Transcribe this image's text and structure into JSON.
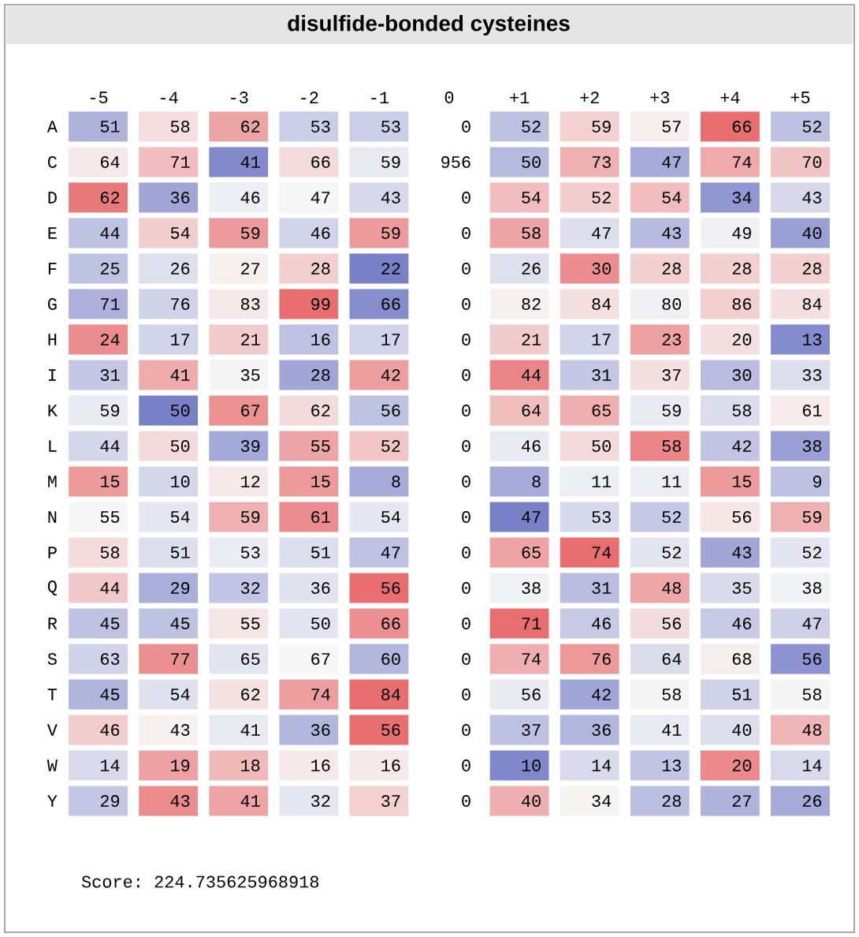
{
  "chart_data": {
    "type": "heatmap",
    "title": "disulfide-bonded cysteines",
    "categories": [
      "-5",
      "-4",
      "-3",
      "-2",
      "-1",
      "0",
      "+1",
      "+2",
      "+3",
      "+4",
      "+5"
    ],
    "y_categories": [
      "A",
      "C",
      "D",
      "E",
      "F",
      "G",
      "H",
      "I",
      "K",
      "L",
      "M",
      "N",
      "P",
      "Q",
      "R",
      "S",
      "T",
      "V",
      "W",
      "Y"
    ],
    "cells": [
      [
        51,
        58,
        62,
        53,
        53,
        0,
        52,
        59,
        57,
        66,
        52
      ],
      [
        64,
        71,
        41,
        66,
        59,
        956,
        50,
        73,
        47,
        74,
        70
      ],
      [
        62,
        36,
        46,
        47,
        43,
        0,
        54,
        52,
        54,
        34,
        43
      ],
      [
        44,
        54,
        59,
        46,
        59,
        0,
        58,
        47,
        43,
        49,
        40
      ],
      [
        25,
        26,
        27,
        28,
        22,
        0,
        26,
        30,
        28,
        28,
        28
      ],
      [
        71,
        76,
        83,
        99,
        66,
        0,
        82,
        84,
        80,
        86,
        84
      ],
      [
        24,
        17,
        21,
        16,
        17,
        0,
        21,
        17,
        23,
        20,
        13
      ],
      [
        31,
        41,
        35,
        28,
        42,
        0,
        44,
        31,
        37,
        30,
        33
      ],
      [
        59,
        50,
        67,
        62,
        56,
        0,
        64,
        65,
        59,
        58,
        61
      ],
      [
        44,
        50,
        39,
        55,
        52,
        0,
        46,
        50,
        58,
        42,
        38
      ],
      [
        15,
        10,
        12,
        15,
        8,
        0,
        8,
        11,
        11,
        15,
        9
      ],
      [
        55,
        54,
        59,
        61,
        54,
        0,
        47,
        53,
        52,
        56,
        59
      ],
      [
        58,
        51,
        53,
        51,
        47,
        0,
        65,
        74,
        52,
        43,
        52
      ],
      [
        44,
        29,
        32,
        36,
        56,
        0,
        38,
        31,
        48,
        35,
        38
      ],
      [
        45,
        45,
        55,
        50,
        66,
        0,
        71,
        46,
        56,
        46,
        47
      ],
      [
        63,
        77,
        65,
        67,
        60,
        0,
        74,
        76,
        64,
        68,
        56
      ],
      [
        45,
        54,
        62,
        74,
        84,
        0,
        56,
        42,
        58,
        51,
        58
      ],
      [
        46,
        43,
        41,
        36,
        56,
        0,
        37,
        36,
        41,
        40,
        48
      ],
      [
        14,
        19,
        18,
        16,
        16,
        0,
        10,
        14,
        13,
        20,
        14
      ],
      [
        29,
        43,
        41,
        32,
        37,
        0,
        40,
        34,
        28,
        27,
        26
      ]
    ],
    "data_labels": true,
    "annotations": [
      "Score: 224.735625968918"
    ]
  }
}
